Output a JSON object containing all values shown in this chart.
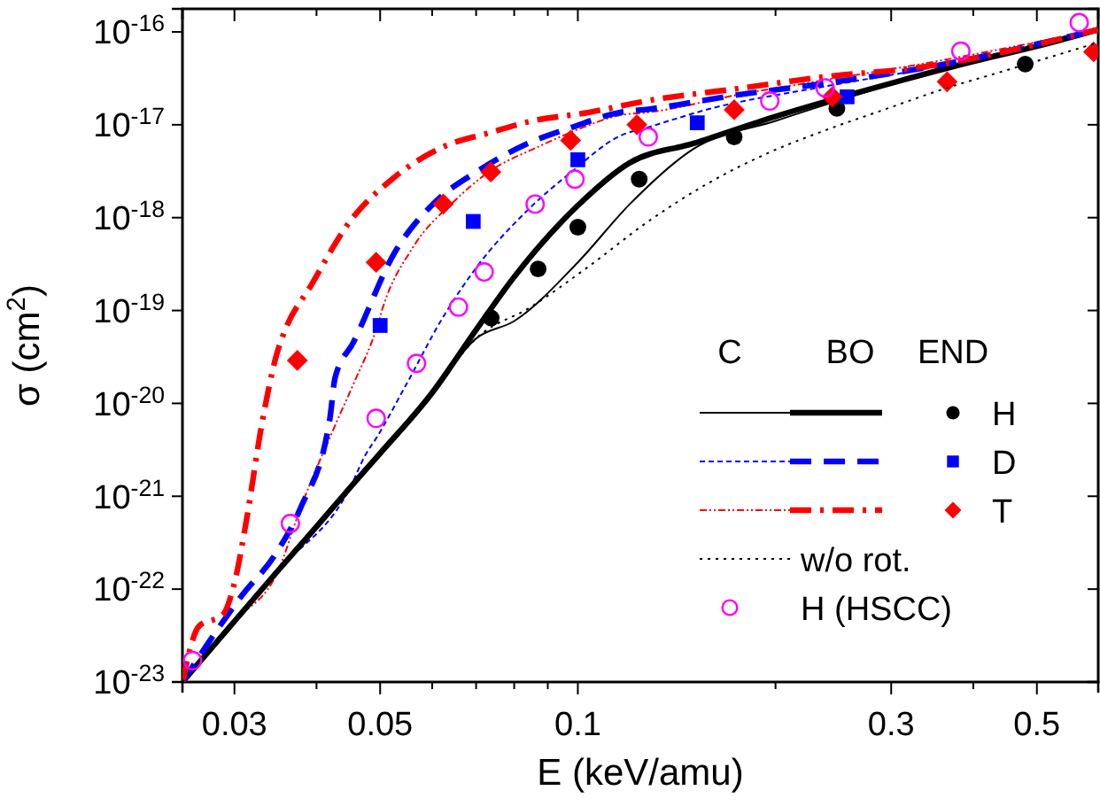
{
  "chart_data": {
    "type": "line",
    "xlabel": "E (keV/amu)",
    "ylabel": "σ (cm$^{2}$)",
    "log": "xy",
    "xlim": [
      0.025,
      0.62
    ],
    "ylim": [
      1e-23,
      1.77e-16
    ],
    "xticks": [
      0.03,
      {
        "value": 0.04,
        "label": null
      },
      0.05,
      {
        "value": 0.06,
        "label": null
      },
      {
        "value": 0.07,
        "label": null
      },
      {
        "value": 0.08,
        "label": null
      },
      {
        "value": 0.09,
        "label": null
      },
      0.1,
      {
        "value": 0.2,
        "label": null
      },
      0.3,
      {
        "value": 0.4,
        "label": null
      },
      0.5
    ],
    "yticks": [
      {
        "value": 1e-23,
        "label": "10$^{-23}$"
      },
      {
        "value": 1e-22,
        "label": "10$^{-22}$"
      },
      {
        "value": 1e-21,
        "label": "10$^{-21}$"
      },
      {
        "value": 1e-20,
        "label": "10$^{-20}$"
      },
      {
        "value": 1e-19,
        "label": "10$^{-19}$"
      },
      {
        "value": 1e-18,
        "label": "10$^{-18}$"
      },
      {
        "value": 1e-17,
        "label": "10$^{-17}$"
      },
      {
        "value": 1e-16,
        "label": "10$^{-16}$"
      }
    ],
    "grid": false,
    "legend": "right",
    "annotations": [
      "C",
      "BO",
      "END",
      "H",
      "D",
      "T"
    ],
    "series": [
      {
        "color": "#000000",
        "line_style": "solid",
        "x": [
          0.025,
          0.03,
          0.035,
          0.04,
          0.045,
          0.05,
          0.06,
          0.07,
          0.08,
          0.1,
          0.12,
          0.15,
          0.2,
          0.3,
          0.4,
          0.5,
          0.62
        ],
        "values": [
          1e-23,
          4.5e-23,
          1.6e-22,
          4.7e-22,
          1.24e-21,
          2.9e-21,
          1.3e-20,
          5e-20,
          7.7e-20,
          3.3e-19,
          1.4e-18,
          5.5e-18,
          1.1e-17,
          2.7e-17,
          4.7e-17,
          7e-17,
          1.05e-16
        ]
      },
      {
        "color": "#0000ff",
        "line_style": "dashed",
        "x": [
          0.025,
          0.035,
          0.045,
          0.0475,
          0.0494,
          0.0548,
          0.0621,
          0.0703,
          0.0831,
          0.098,
          0.116,
          0.128,
          0.158,
          0.239,
          0.362,
          0.62
        ],
        "values": [
          1e-23,
          1.6e-22,
          1.24e-21,
          2.8e-21,
          4.3e-21,
          1.6e-20,
          8.1e-20,
          3e-19,
          1.13e-18,
          3.15e-18,
          7.6e-18,
          9.4e-18,
          1.47e-17,
          2.6e-17,
          4.4e-17,
          1.1e-16
        ]
      },
      {
        "color": "#ff0000",
        "line_style": "dashdot",
        "x": [
          0.025,
          0.03,
          0.035,
          0.0378,
          0.0427,
          0.0455,
          0.0494,
          0.0505,
          0.056,
          0.0648,
          0.0734,
          0.0866,
          0.102,
          0.116,
          0.128,
          0.175,
          0.239,
          0.327,
          0.62
        ],
        "values": [
          1e-23,
          4.5e-23,
          1.6e-22,
          7.4e-22,
          5.8e-21,
          1.6e-20,
          6.5e-20,
          1.09e-19,
          4.7e-19,
          1.5e-18,
          3.15e-18,
          5.7e-18,
          9.4e-18,
          1.27e-17,
          1.36e-17,
          2.1e-17,
          3.05e-17,
          4.4e-17,
          1.06e-16
        ]
      },
      {
        "color": "#000000",
        "line_style": "solid",
        "x": [
          0.025,
          0.03,
          0.035,
          0.04,
          0.045,
          0.05,
          0.06,
          0.07,
          0.08,
          0.1,
          0.12,
          0.15,
          0.2,
          0.3,
          0.4,
          0.5,
          0.62
        ],
        "values": [
          1e-23,
          4.5e-23,
          1.6e-22,
          4.7e-22,
          1.24e-21,
          2.9e-21,
          1.3e-20,
          6.2e-20,
          2.3e-19,
          1.35e-18,
          3.9e-18,
          6.3e-18,
          1.23e-17,
          2.8e-17,
          4.8e-17,
          7e-17,
          1.06e-16
        ]
      },
      {
        "color": "#0000ff",
        "line_style": "dashed",
        "x": [
          0.025,
          0.0307,
          0.0348,
          0.0378,
          0.0419,
          0.0427,
          0.0455,
          0.0525,
          0.0608,
          0.0703,
          0.0831,
          0.098,
          0.116,
          0.128,
          0.175,
          0.239,
          0.362,
          0.62
        ],
        "values": [
          1e-23,
          8.3e-23,
          2.5e-22,
          7.4e-22,
          6.7e-21,
          1.9e-20,
          4.5e-20,
          4.1e-19,
          1.5e-18,
          3.15e-18,
          6.1e-18,
          9.4e-18,
          1.36e-17,
          1.47e-17,
          2.1e-17,
          2.8e-17,
          4.5e-17,
          1.06e-16
        ]
      },
      {
        "color": "#ff0000",
        "line_style": "dashdot",
        "x": [
          0.025,
          0.0265,
          0.0288,
          0.0301,
          0.0313,
          0.033,
          0.0348,
          0.0355,
          0.0394,
          0.0446,
          0.0525,
          0.0621,
          0.0734,
          0.0848,
          0.104,
          0.128,
          0.175,
          0.239,
          0.327,
          0.62
        ],
        "values": [
          1e-23,
          4e-23,
          5.3e-23,
          1.29e-22,
          5.6e-22,
          5.8e-21,
          3.4e-20,
          5.2e-20,
          1.95e-19,
          8.4e-19,
          2.7e-18,
          5.7e-18,
          8.2e-18,
          1.09e-17,
          1.36e-17,
          1.82e-17,
          2.45e-17,
          3.3e-17,
          4.1e-17,
          1.06e-16
        ]
      },
      {
        "type": "scatter",
        "color": "#000000",
        "marker": "circle",
        "x": [
          0.0738,
          0.087,
          0.1,
          0.124,
          0.173,
          0.248,
          0.48
        ],
        "values": [
          8.3e-20,
          2.8e-19,
          7.9e-19,
          2.6e-18,
          7.4e-18,
          1.5e-17,
          4.5e-17
        ]
      },
      {
        "type": "scatter",
        "color": "#0000ff",
        "marker": "square",
        "x": [
          0.05,
          0.0693,
          0.1,
          0.152,
          0.257
        ],
        "values": [
          6.9e-20,
          9.1e-19,
          4.2e-18,
          1.05e-17,
          2e-17
        ]
      },
      {
        "type": "scatter",
        "color": "#ff0000",
        "marker": "diamond",
        "x": [
          0.0374,
          0.0493,
          0.0624,
          0.0737,
          0.0975,
          0.123,
          0.173,
          0.244,
          0.365,
          0.61
        ],
        "values": [
          2.9e-20,
          3.3e-19,
          1.4e-18,
          3.1e-18,
          6.8e-18,
          1e-17,
          1.45e-17,
          2e-17,
          2.9e-17,
          6.1e-17
        ]
      },
      {
        "name": "w/o rot.",
        "color": "#000000",
        "line_style": "dotted",
        "x": [
          0.025,
          0.04,
          0.06,
          0.07,
          0.0848,
          0.104,
          0.128,
          0.158,
          0.194,
          0.239,
          0.294,
          0.362,
          0.446,
          0.548,
          0.62
        ],
        "values": [
          1e-23,
          4.7e-22,
          1.3e-20,
          5e-20,
          1.09e-19,
          3e-19,
          9.1e-19,
          2.35e-18,
          4.9e-18,
          8.8e-18,
          1.47e-17,
          2.45e-17,
          3.8e-17,
          5.9e-17,
          7.7e-17
        ]
      },
      {
        "type": "scatter",
        "name": "H (HSCC)",
        "color": "#ff00ff",
        "marker": "circle",
        "x": [
          0.0259,
          0.0365,
          0.0493,
          0.0568,
          0.0658,
          0.072,
          0.0861,
          0.099,
          0.128,
          0.196,
          0.238,
          0.383,
          0.58
        ],
        "values": [
          1.7e-23,
          5.1e-22,
          6.9e-21,
          2.7e-20,
          1.09e-19,
          2.6e-19,
          1.4e-18,
          2.6e-18,
          7.4e-18,
          1.8e-17,
          2.5e-17,
          6.2e-17,
          1.26e-16
        ]
      }
    ]
  }
}
